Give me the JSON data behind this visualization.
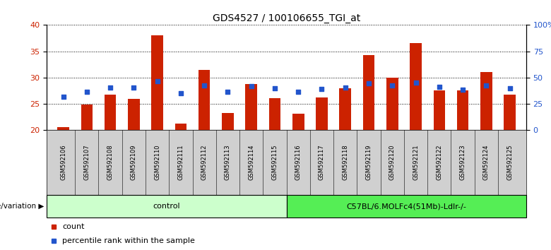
{
  "title": "GDS4527 / 100106655_TGI_at",
  "samples": [
    "GSM592106",
    "GSM592107",
    "GSM592108",
    "GSM592109",
    "GSM592110",
    "GSM592111",
    "GSM592112",
    "GSM592113",
    "GSM592114",
    "GSM592115",
    "GSM592116",
    "GSM592117",
    "GSM592118",
    "GSM592119",
    "GSM592120",
    "GSM592121",
    "GSM592122",
    "GSM592123",
    "GSM592124",
    "GSM592125"
  ],
  "bar_heights": [
    20.5,
    24.8,
    26.7,
    25.9,
    38.0,
    21.2,
    31.5,
    23.2,
    28.7,
    26.0,
    23.1,
    26.2,
    28.0,
    34.3,
    30.0,
    36.5,
    27.5,
    27.5,
    31.0,
    26.7
  ],
  "blue_dots": [
    26.4,
    27.3,
    28.1,
    28.1,
    29.3,
    27.0,
    28.5,
    27.3,
    28.3,
    28.0,
    27.3,
    27.8,
    28.1,
    28.9,
    28.5,
    29.0,
    28.2,
    27.7,
    28.5,
    28.0
  ],
  "bar_color": "#cc2200",
  "dot_color": "#2255cc",
  "bar_bottom": 20,
  "ylim_left": [
    20,
    40
  ],
  "ylim_right": [
    0,
    100
  ],
  "yticks_left": [
    20,
    25,
    30,
    35,
    40
  ],
  "yticks_right": [
    0,
    25,
    50,
    75,
    100
  ],
  "ytick_labels_right": [
    "0",
    "25",
    "50",
    "75",
    "100%"
  ],
  "control_samples": 10,
  "group1_label": "control",
  "group2_label": "C57BL/6.MOLFc4(51Mb)-Ldlr-/-",
  "group1_color": "#ccffcc",
  "group2_color": "#55ee55",
  "genotype_label": "genotype/variation",
  "legend_count": "count",
  "legend_percentile": "percentile rank within the sample",
  "title_fontsize": 10,
  "axis_label_fontsize": 8,
  "tick_labelsize": 8
}
